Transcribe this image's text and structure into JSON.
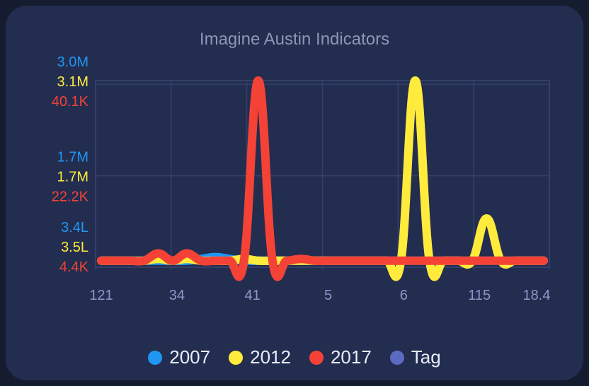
{
  "chart_data": {
    "type": "line",
    "title": "Imagine Austin Indicators",
    "x_tick_labels": [
      "121",
      "34",
      "41",
      "5",
      "6",
      "115",
      "18.4"
    ],
    "y_axes": [
      {
        "series": "2007",
        "color": "#2196f3",
        "tick_labels": [
          "3.4L",
          "1.7M",
          "3.0M"
        ]
      },
      {
        "series": "2012",
        "color": "#ffeb3b",
        "tick_labels": [
          "3.5L",
          "1.7M",
          "3.1M"
        ]
      },
      {
        "series": "2017",
        "color": "#f44336",
        "tick_labels": [
          "4.4K",
          "22.2K",
          "40.1K"
        ]
      }
    ],
    "series": [
      {
        "name": "2007",
        "color": "#2196f3",
        "values": [
          0.02,
          0.02,
          0.02,
          0.02,
          0.02,
          0.02,
          0.02,
          0.03,
          0.04,
          0.03,
          0.02,
          0.02,
          0.02,
          0.02,
          0.02,
          0.02,
          0.02,
          0.02,
          0.02,
          0.02,
          0.02,
          0.02,
          0.02,
          0.02,
          0.02,
          0.02,
          0.02,
          0.02,
          0.02,
          0.02,
          0.02,
          0.02
        ]
      },
      {
        "name": "2012",
        "color": "#ffeb3b",
        "values": [
          0.02,
          0.02,
          0.02,
          0.02,
          0.03,
          0.02,
          0.03,
          0.02,
          0.02,
          0.02,
          0.03,
          0.02,
          0.02,
          0.02,
          0.02,
          0.02,
          0.02,
          0.02,
          0.02,
          0.02,
          0.02,
          0.02,
          1.0,
          0.02,
          0.02,
          0.02,
          0.02,
          0.25,
          0.02,
          0.02,
          0.02,
          0.02
        ]
      },
      {
        "name": "2017",
        "color": "#f44336",
        "values": [
          0.02,
          0.02,
          0.02,
          0.02,
          0.06,
          0.02,
          0.06,
          0.02,
          0.02,
          0.02,
          0.02,
          1.0,
          0.02,
          0.02,
          0.03,
          0.02,
          0.02,
          0.02,
          0.02,
          0.02,
          0.02,
          0.02,
          0.02,
          0.02,
          0.02,
          0.02,
          0.02,
          0.02,
          0.02,
          0.02,
          0.02,
          0.02
        ]
      }
    ],
    "legend": {
      "placement": "bottom",
      "entries": [
        {
          "label": "2007",
          "color": "#2196f3"
        },
        {
          "label": "2012",
          "color": "#ffeb3b"
        },
        {
          "label": "2017",
          "color": "#f44336"
        },
        {
          "label": "Tag",
          "color": "#5c6bc0"
        }
      ]
    },
    "grid": true
  }
}
